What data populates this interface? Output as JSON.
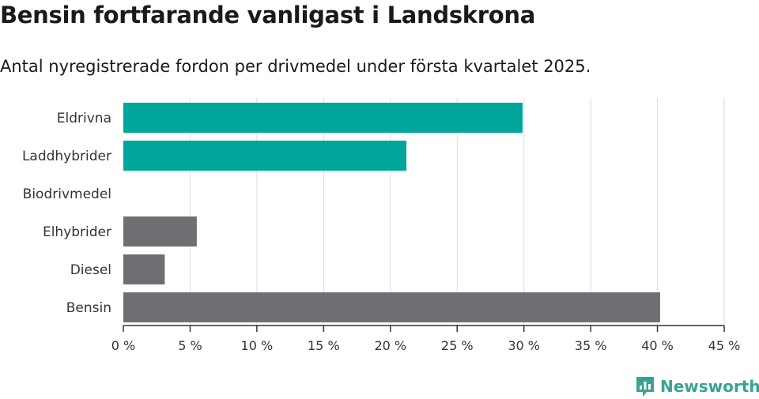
{
  "header": {
    "title": "Bensin fortfarande vanligast i Landskrona",
    "subtitle": "Antal nyregistrerade fordon per drivmedel under första kvartalet 2025."
  },
  "brand": {
    "name": "Newsworthy",
    "color": "#3aa294",
    "icon": "newsworthy-logo-icon"
  },
  "chart_data": {
    "type": "bar",
    "orientation": "horizontal",
    "categories": [
      "Eldrivna",
      "Laddhybrider",
      "Biodrivmedel",
      "Elhybrider",
      "Diesel",
      "Bensin"
    ],
    "values": [
      29.9,
      21.2,
      0,
      5.5,
      3.1,
      40.2
    ],
    "colors": [
      "#00a59b",
      "#00a59b",
      "#00a59b",
      "#6f6e73",
      "#6f6e73",
      "#6f6e73"
    ],
    "xlim": [
      0,
      45
    ],
    "xticks": [
      0,
      5,
      10,
      15,
      20,
      25,
      30,
      35,
      40,
      45
    ],
    "xtick_labels": [
      "0 %",
      "5 %",
      "10 %",
      "15 %",
      "20 %",
      "25 %",
      "30 %",
      "35 %",
      "40 %",
      "45 %"
    ],
    "grid": true,
    "legend": "none"
  }
}
